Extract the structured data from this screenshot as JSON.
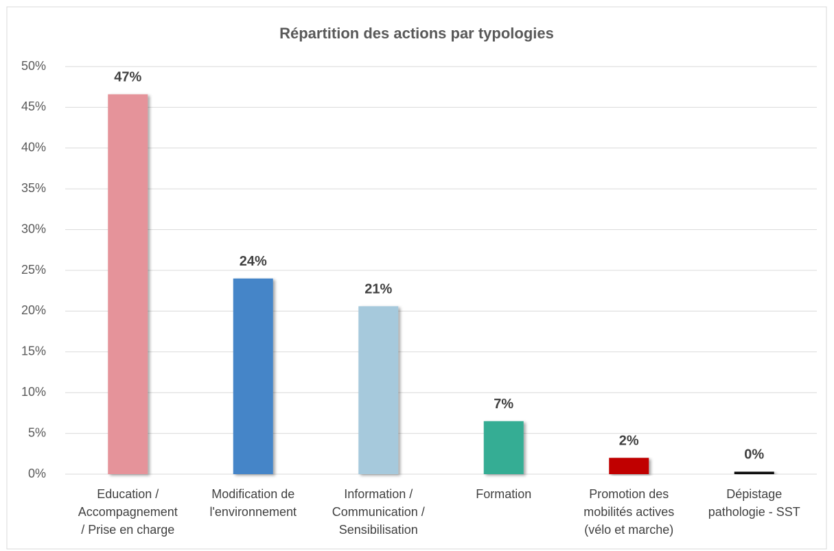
{
  "chart_data": {
    "type": "bar",
    "title": "Répartition des actions par typologies",
    "categories": [
      "Education /\nAccompagnement\n/ Prise en charge",
      "Modification de\nl'environnement",
      "Information /\nCommunication /\nSensibilisation",
      "Formation",
      "Promotion des\nmobilités actives\n(vélo et marche)",
      "Dépistage\npathologie - SST"
    ],
    "values": [
      46.6,
      24.0,
      20.6,
      6.5,
      2.0,
      0.3
    ],
    "value_labels": [
      "47%",
      "24%",
      "21%",
      "7%",
      "2%",
      "0%"
    ],
    "colors": [
      "#e5939a",
      "#4485c8",
      "#a6c9dc",
      "#34ad94",
      "#c00000",
      "#111111"
    ],
    "ylim": [
      0,
      50
    ],
    "yticks": [
      {
        "value": 0,
        "label": "0%"
      },
      {
        "value": 5,
        "label": "5%"
      },
      {
        "value": 10,
        "label": "10%"
      },
      {
        "value": 15,
        "label": "15%"
      },
      {
        "value": 20,
        "label": "20%"
      },
      {
        "value": 25,
        "label": "25%"
      },
      {
        "value": 30,
        "label": "30%"
      },
      {
        "value": 35,
        "label": "35%"
      },
      {
        "value": 40,
        "label": "40%"
      },
      {
        "value": 45,
        "label": "45%"
      },
      {
        "value": 50,
        "label": "50%"
      }
    ],
    "grid": true
  }
}
